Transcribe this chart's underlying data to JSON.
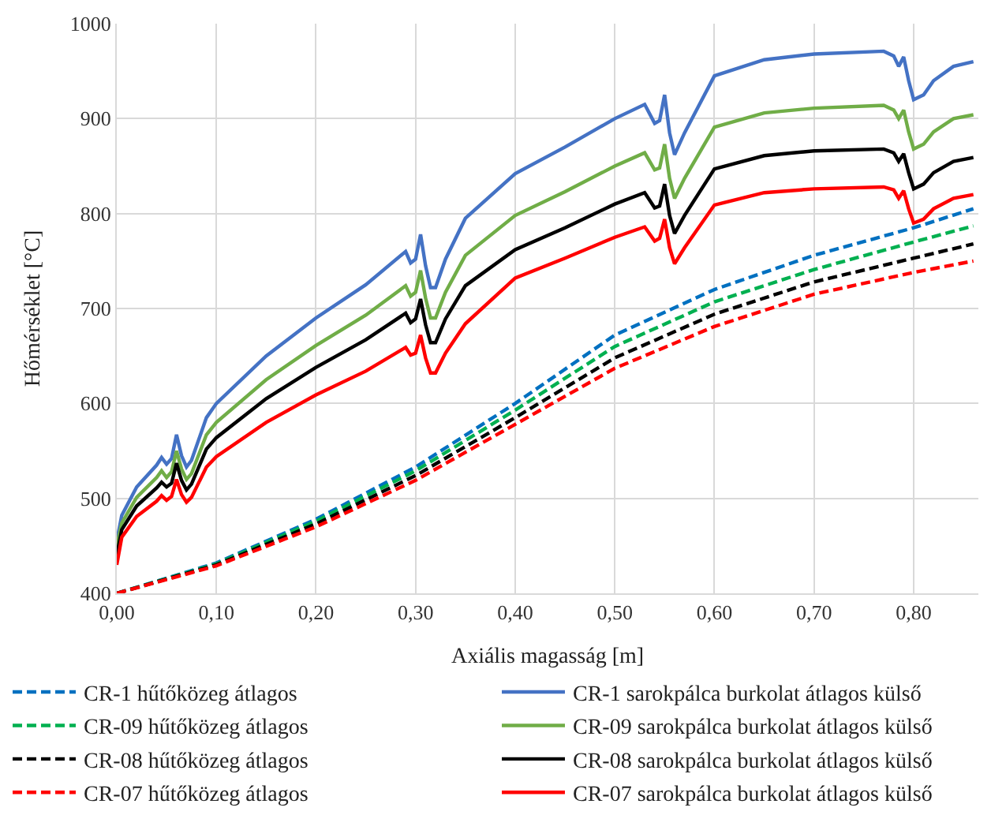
{
  "chart_data": {
    "type": "line",
    "xlabel": "Axiális magasság [m]",
    "ylabel": "Hőmérséklet [°C]",
    "xlim": [
      0,
      0.865
    ],
    "ylim": [
      400,
      1000
    ],
    "xticks": [
      {
        "value": 0,
        "label": "0,00"
      },
      {
        "value": 0.1,
        "label": "0,10"
      },
      {
        "value": 0.2,
        "label": "0,20"
      },
      {
        "value": 0.3,
        "label": "0,30"
      },
      {
        "value": 0.4,
        "label": "0,40"
      },
      {
        "value": 0.5,
        "label": "0,50"
      },
      {
        "value": 0.6,
        "label": "0,60"
      },
      {
        "value": 0.7,
        "label": "0,70"
      },
      {
        "value": 0.8,
        "label": "0,80"
      }
    ],
    "yticks": [
      400,
      500,
      600,
      700,
      800,
      900,
      1000
    ],
    "grid": true,
    "legend": "bottom",
    "marker": "none",
    "x": [
      0,
      0.005,
      0.02,
      0.04,
      0.045,
      0.05,
      0.055,
      0.06,
      0.065,
      0.07,
      0.075,
      0.09,
      0.1,
      0.15,
      0.2,
      0.25,
      0.29,
      0.295,
      0.3,
      0.305,
      0.31,
      0.315,
      0.32,
      0.33,
      0.35,
      0.4,
      0.45,
      0.5,
      0.53,
      0.54,
      0.545,
      0.55,
      0.555,
      0.56,
      0.57,
      0.6,
      0.65,
      0.7,
      0.77,
      0.78,
      0.785,
      0.79,
      0.795,
      0.8,
      0.81,
      0.82,
      0.84,
      0.86
    ],
    "series": [
      {
        "name": "CR-1 hűtőközeg átlagos",
        "color": "#0070c0",
        "line_style": "dashed",
        "x": [
          0,
          0.1,
          0.2,
          0.3,
          0.4,
          0.5,
          0.6,
          0.7,
          0.8,
          0.86
        ],
        "values": [
          400,
          432,
          478,
          533,
          600,
          672,
          720,
          756,
          785,
          805
        ]
      },
      {
        "name": "CR-1 sarokpálca burkolat átlagos külső",
        "color": "#4472c4",
        "line_style": "solid",
        "values": [
          455,
          482,
          512,
          535,
          543,
          536,
          542,
          567,
          545,
          533,
          540,
          585,
          600,
          650,
          690,
          725,
          760,
          748,
          752,
          778,
          745,
          722,
          722,
          752,
          795,
          842,
          870,
          900,
          915,
          895,
          898,
          925,
          885,
          862,
          885,
          945,
          962,
          968,
          971,
          966,
          955,
          965,
          940,
          920,
          925,
          940,
          955,
          960
        ]
      },
      {
        "name": "CR-09 hűtőközeg átlagos",
        "color": "#00b050",
        "line_style": "dashed",
        "x": [
          0,
          0.1,
          0.2,
          0.3,
          0.4,
          0.5,
          0.6,
          0.7,
          0.8,
          0.86
        ],
        "values": [
          400,
          431,
          476,
          529,
          593,
          660,
          707,
          741,
          770,
          787
        ]
      },
      {
        "name": "CR-09 sarokpálca burkolat átlagos külső",
        "color": "#70ad47",
        "line_style": "solid",
        "values": [
          450,
          474,
          501,
          522,
          529,
          522,
          528,
          550,
          531,
          520,
          526,
          567,
          580,
          625,
          661,
          693,
          724,
          713,
          717,
          740,
          711,
          690,
          690,
          717,
          756,
          798,
          823,
          850,
          864,
          846,
          848,
          873,
          837,
          816,
          837,
          891,
          906,
          911,
          914,
          909,
          900,
          909,
          886,
          868,
          873,
          886,
          900,
          904
        ]
      },
      {
        "name": "CR-08 hűtőközeg átlagos",
        "color": "#000000",
        "line_style": "dashed",
        "x": [
          0,
          0.1,
          0.2,
          0.3,
          0.4,
          0.5,
          0.6,
          0.7,
          0.8,
          0.86
        ],
        "values": [
          400,
          430,
          473,
          524,
          585,
          648,
          694,
          728,
          753,
          768
        ]
      },
      {
        "name": "CR-08 sarokpálca burkolat átlagos külső",
        "color": "#000000",
        "line_style": "solid",
        "values": [
          440,
          467,
          492,
          511,
          517,
          512,
          516,
          537,
          519,
          509,
          515,
          552,
          564,
          605,
          638,
          667,
          695,
          685,
          689,
          710,
          683,
          664,
          664,
          689,
          724,
          762,
          785,
          810,
          822,
          806,
          808,
          831,
          798,
          779,
          798,
          847,
          861,
          866,
          868,
          864,
          855,
          863,
          843,
          826,
          831,
          843,
          855,
          859
        ]
      },
      {
        "name": "CR-07 hűtőközeg átlagos",
        "color": "#ff0000",
        "line_style": "dashed",
        "x": [
          0,
          0.1,
          0.2,
          0.3,
          0.4,
          0.5,
          0.6,
          0.7,
          0.8,
          0.86
        ],
        "values": [
          400,
          429,
          470,
          519,
          578,
          637,
          681,
          715,
          738,
          750
        ]
      },
      {
        "name": "CR-07 sarokpálca burkolat átlagos külső",
        "color": "#ff0000",
        "line_style": "solid",
        "values": [
          430,
          459,
          481,
          497,
          503,
          498,
          502,
          520,
          504,
          496,
          501,
          533,
          544,
          580,
          609,
          634,
          659,
          651,
          653,
          672,
          648,
          632,
          632,
          653,
          684,
          732,
          753,
          775,
          786,
          771,
          774,
          794,
          764,
          747,
          764,
          809,
          822,
          826,
          828,
          825,
          816,
          824,
          805,
          790,
          794,
          805,
          816,
          820
        ]
      }
    ]
  }
}
